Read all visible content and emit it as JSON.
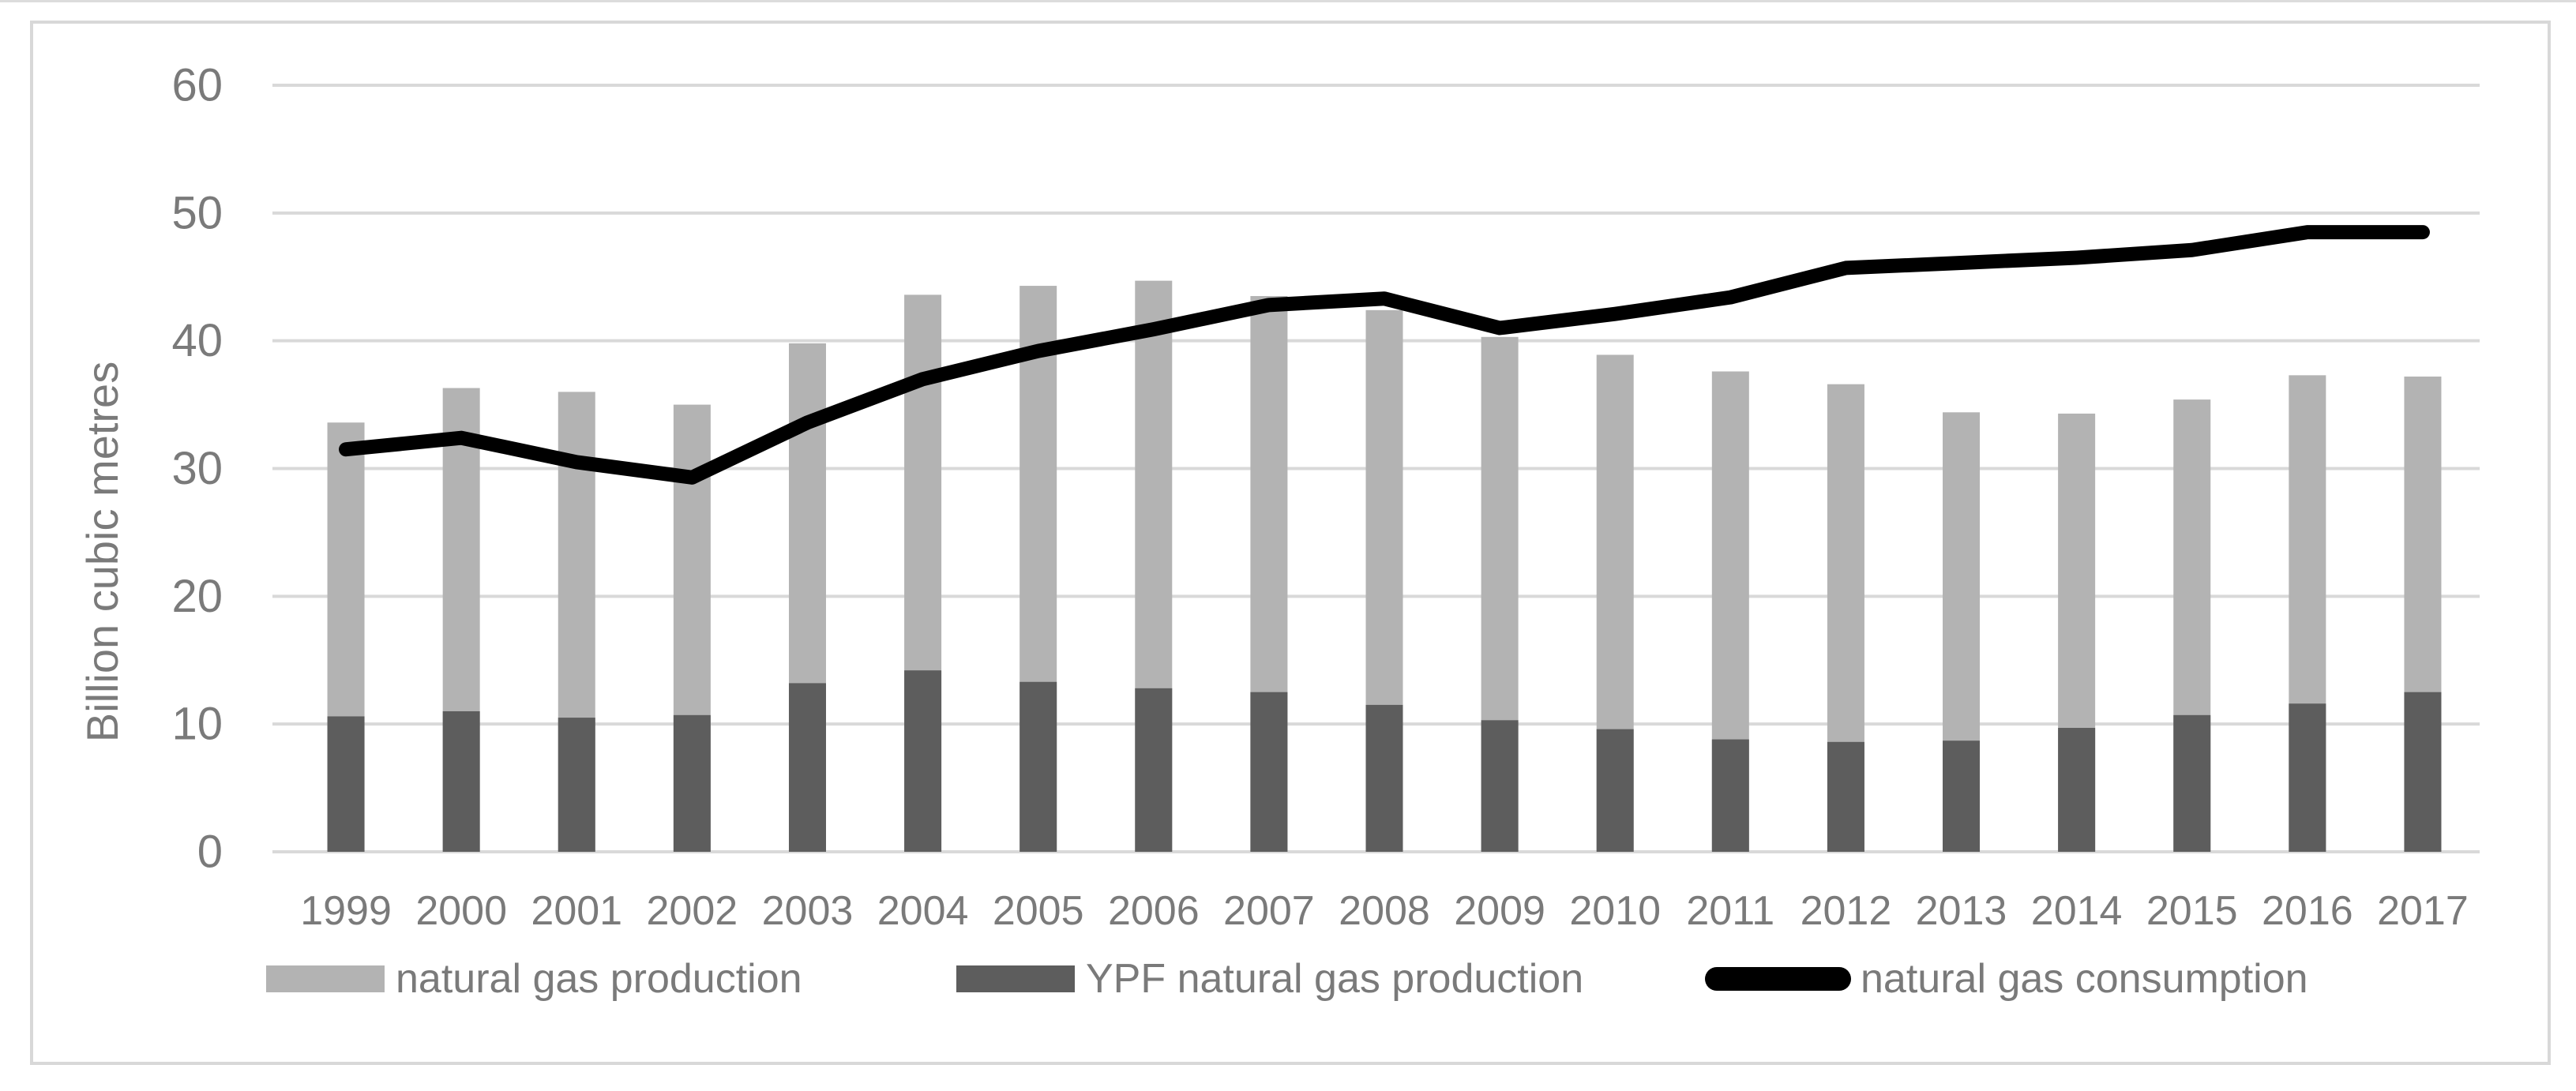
{
  "figure": {
    "ylabel": "Billion cubic metres",
    "background": "#ffffff",
    "frame_color": "#d8d8d8",
    "grid_color": "#d9d9d9",
    "text_color": "#7a7a7a"
  },
  "legend": {
    "position": "bottom",
    "items": [
      {
        "label": "natural gas production",
        "marker": "rect",
        "color": "#b3b3b3"
      },
      {
        "label": "YPF natural gas production",
        "marker": "rect",
        "color": "#5d5d5d"
      },
      {
        "label": "natural gas consumption",
        "marker": "line",
        "color": "#000000"
      }
    ]
  },
  "chart_data": {
    "type": "bar+line combo",
    "categories": [
      "1999",
      "2000",
      "2001",
      "2002",
      "2003",
      "2004",
      "2005",
      "2006",
      "2007",
      "2008",
      "2009",
      "2010",
      "2011",
      "2012",
      "2013",
      "2014",
      "2015",
      "2016",
      "2017"
    ],
    "series": [
      {
        "name": "natural gas production",
        "type": "bar",
        "color": "#b3b3b3",
        "values": [
          33.6,
          36.3,
          36.0,
          35.0,
          39.8,
          43.6,
          44.3,
          44.7,
          43.5,
          42.4,
          40.3,
          38.9,
          37.6,
          36.6,
          34.4,
          34.3,
          35.4,
          37.3,
          37.2
        ]
      },
      {
        "name": "YPF natural gas production",
        "type": "bar",
        "color": "#5d5d5d",
        "values": [
          10.6,
          11.0,
          10.5,
          10.7,
          13.2,
          14.2,
          13.3,
          12.8,
          12.5,
          11.5,
          10.3,
          9.6,
          8.8,
          8.6,
          8.7,
          9.7,
          10.7,
          11.6,
          12.5
        ]
      },
      {
        "name": "natural gas consumption",
        "type": "line",
        "color": "#000000",
        "values": [
          31.5,
          32.4,
          30.5,
          29.3,
          33.6,
          37.0,
          39.2,
          40.9,
          42.8,
          43.3,
          41.0,
          42.1,
          43.4,
          45.7,
          46.1,
          46.5,
          47.1,
          48.5,
          48.5
        ]
      }
    ],
    "title": "",
    "xlabel": "",
    "ylabel": "Billion cubic metres",
    "ylim": [
      0,
      60
    ],
    "yticks": [
      0,
      10,
      20,
      30,
      40,
      50,
      60
    ],
    "grid": true,
    "bar_overlap_note": "YPF bars drawn in front of total production bars (overlapping, not stacked)",
    "legend_position": "bottom"
  }
}
